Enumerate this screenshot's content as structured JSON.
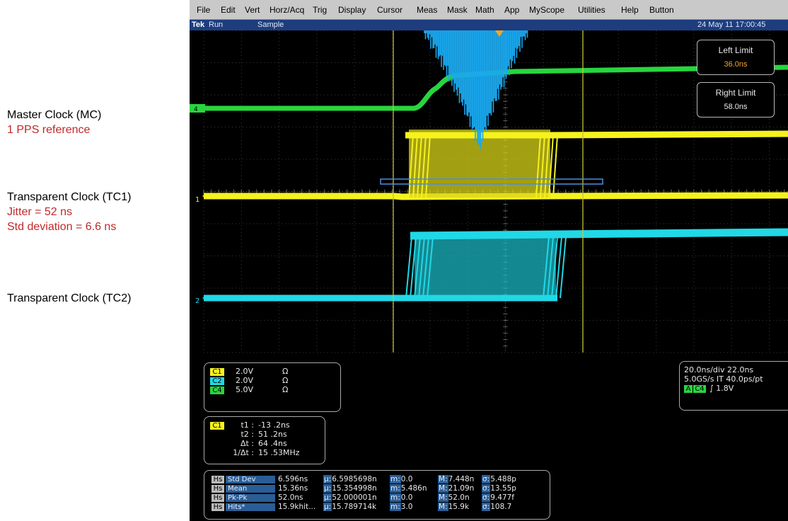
{
  "annotations": {
    "mc_title": "Master Clock (MC)",
    "mc_sub": "1 PPS reference",
    "tc1_title": "Transparent Clock (TC1)",
    "tc1_jitter": "Jitter = 52 ns",
    "tc1_std": "Std deviation = 6.6 ns",
    "tc2_title": "Transparent Clock (TC2)"
  },
  "menu": [
    "File",
    "Edit",
    "Vert",
    "Horz/Acq",
    "Trig",
    "Display",
    "Cursor",
    "Meas",
    "Mask",
    "Math",
    "App",
    "MyScope",
    "Utilities",
    "Help",
    "Button"
  ],
  "status": {
    "brand": "Tek",
    "run": "Run",
    "mode": "Sample",
    "datetime": "24 May 11 17:00:45"
  },
  "limits": {
    "left_title": "Left Limit",
    "left_value": "36.0ns",
    "right_title": "Right Limit",
    "right_value": "58.0ns"
  },
  "channel_markers": {
    "c4": "4",
    "c1": "1",
    "c2": "2"
  },
  "channels": [
    {
      "name": "C1",
      "volts": "2.0V",
      "coupling": "Ω",
      "color": "#f5f21e"
    },
    {
      "name": "C2",
      "volts": "2.0V",
      "coupling": "Ω",
      "color": "#21d8e6"
    },
    {
      "name": "C4",
      "volts": "5.0V",
      "coupling": "Ω",
      "color": "#27d63e"
    }
  ],
  "cursor_readout": {
    "channel": "C1",
    "t1_label": "t1 :",
    "t1": "-13 .2ns",
    "t2_label": "t2 :",
    "t2": "51 .2ns",
    "dt_label": "Δt :",
    "dt": "64 .4ns",
    "inv_label": "1/Δt :",
    "inv": "15 .53MHz"
  },
  "timebase": {
    "line1": "20.0ns/div  22.0ns",
    "line2": "5.0GS/s IT 40.0ps/pt",
    "trig_badge": "A",
    "trig_channel": "C4",
    "trig_level": "∫ 1.8V"
  },
  "stats": {
    "source": "Hs",
    "rows": [
      {
        "label": "Std Dev",
        "value": "6.596ns",
        "mu": "6.5985698n",
        "m": "0.0",
        "M": "7.448n",
        "sigma": "5.488p"
      },
      {
        "label": "Mean",
        "value": "15.36ns",
        "mu": "15.354998n",
        "m": "5.486n",
        "M": "21.09n",
        "sigma": "13.55p"
      },
      {
        "label": "Pk-Pk",
        "value": "52.0ns",
        "mu": "52.000001n",
        "m": "0.0",
        "M": "52.0n",
        "sigma": "9.477f"
      },
      {
        "label": "Hits*",
        "value": "15.9khit...",
        "mu": "15.789714k",
        "m": "3.0",
        "M": "15.9k",
        "sigma": "108.7"
      }
    ],
    "mu_key": "µ:",
    "m_key": "m:",
    "M_key": "M:",
    "sigma_key": "σ:"
  },
  "colors": {
    "yellow": "#f5f21e",
    "cyan": "#21d8e6",
    "green": "#27d63e",
    "histogram": "#1aa8ee",
    "cursor": "#c8c238",
    "grid": "#3a3a3a"
  }
}
